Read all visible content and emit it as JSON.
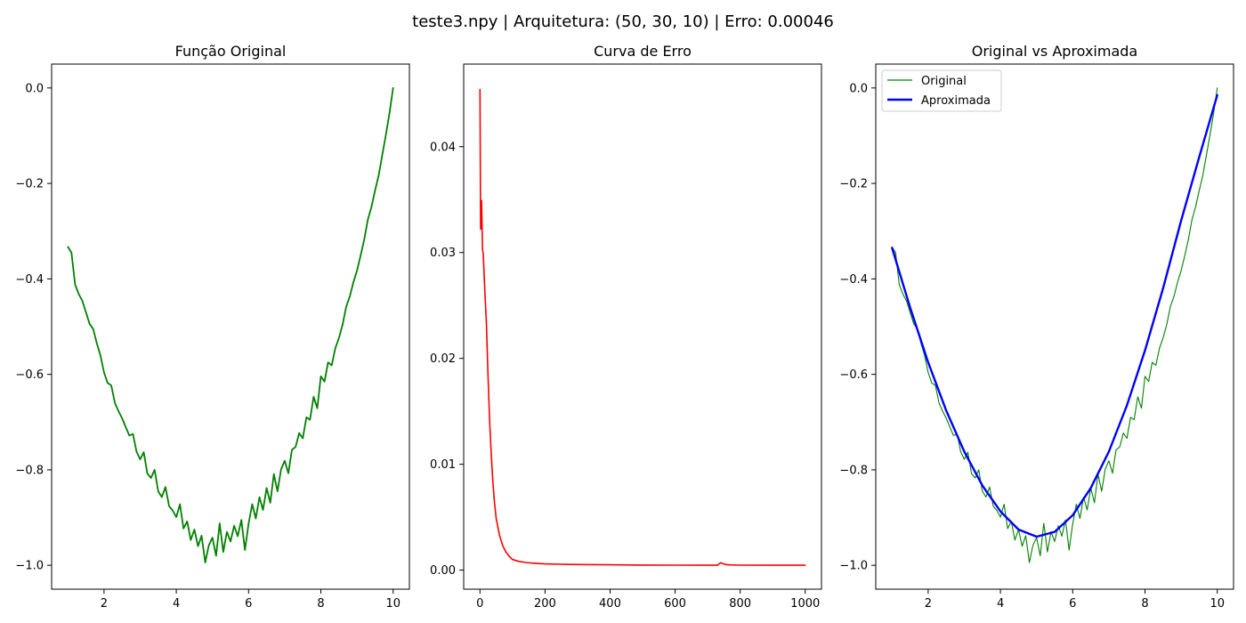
{
  "figure": {
    "suptitle": "teste3.npy | Arquitetura: (50, 30, 10) | Erro: 0.00046"
  },
  "colors": {
    "original": "#008000",
    "approx": "#0000ff",
    "error": "#ff0000"
  },
  "chart_data": [
    {
      "id": "original",
      "type": "line",
      "title": "Função Original",
      "xlim": [
        0.55,
        10.45
      ],
      "ylim": [
        -1.05,
        0.05
      ],
      "xticks": [
        2,
        4,
        6,
        8,
        10
      ],
      "xtick_labels": [
        "2",
        "4",
        "6",
        "8",
        "10"
      ],
      "yticks": [
        -1.0,
        -0.8,
        -0.6,
        -0.4,
        -0.2,
        0.0
      ],
      "ytick_labels": [
        "−1.0",
        "−0.8",
        "−0.6",
        "−0.4",
        "−0.2",
        "0.0"
      ],
      "series": [
        {
          "name": "Original",
          "x": [
            1.0,
            1.1,
            1.2,
            1.3,
            1.4,
            1.5,
            1.6,
            1.7,
            1.8,
            1.9,
            2.0,
            2.1,
            2.2,
            2.3,
            2.4,
            2.5,
            2.6,
            2.7,
            2.8,
            2.9,
            3.0,
            3.1,
            3.2,
            3.3,
            3.4,
            3.5,
            3.6,
            3.7,
            3.8,
            3.9,
            4.0,
            4.1,
            4.2,
            4.3,
            4.4,
            4.5,
            4.6,
            4.7,
            4.8,
            4.9,
            5.0,
            5.1,
            5.2,
            5.3,
            5.4,
            5.5,
            5.6,
            5.7,
            5.8,
            5.9,
            6.0,
            6.1,
            6.2,
            6.3,
            6.4,
            6.5,
            6.6,
            6.7,
            6.8,
            6.9,
            7.0,
            7.1,
            7.2,
            7.3,
            7.4,
            7.5,
            7.6,
            7.7,
            7.8,
            7.9,
            8.0,
            8.1,
            8.2,
            8.3,
            8.4,
            8.5,
            8.6,
            8.7,
            8.8,
            8.9,
            9.0,
            9.1,
            9.2,
            9.3,
            9.4,
            9.5,
            9.6,
            9.7,
            9.8,
            9.9,
            10.0
          ],
          "y": [
            -0.333,
            -0.345,
            -0.412,
            -0.432,
            -0.446,
            -0.47,
            -0.494,
            -0.505,
            -0.535,
            -0.56,
            -0.596,
            -0.618,
            -0.623,
            -0.66,
            -0.677,
            -0.692,
            -0.71,
            -0.728,
            -0.725,
            -0.762,
            -0.778,
            -0.763,
            -0.808,
            -0.817,
            -0.8,
            -0.845,
            -0.857,
            -0.836,
            -0.876,
            -0.885,
            -0.899,
            -0.872,
            -0.923,
            -0.908,
            -0.947,
            -0.925,
            -0.96,
            -0.938,
            -0.994,
            -0.958,
            -0.942,
            -0.98,
            -0.912,
            -0.972,
            -0.93,
            -0.95,
            -0.917,
            -0.939,
            -0.905,
            -0.968,
            -0.913,
            -0.872,
            -0.902,
            -0.857,
            -0.884,
            -0.838,
            -0.869,
            -0.809,
            -0.845,
            -0.799,
            -0.781,
            -0.807,
            -0.758,
            -0.752,
            -0.723,
            -0.734,
            -0.69,
            -0.695,
            -0.647,
            -0.671,
            -0.604,
            -0.615,
            -0.575,
            -0.581,
            -0.545,
            -0.524,
            -0.496,
            -0.459,
            -0.437,
            -0.407,
            -0.383,
            -0.351,
            -0.318,
            -0.276,
            -0.249,
            -0.215,
            -0.183,
            -0.141,
            -0.098,
            -0.052,
            0.0
          ]
        }
      ]
    },
    {
      "id": "error",
      "type": "line",
      "title": "Curva de Erro",
      "xlim": [
        -50,
        1050
      ],
      "ylim": [
        -0.0018,
        0.0478
      ],
      "xticks": [
        0,
        200,
        400,
        600,
        800,
        1000
      ],
      "xtick_labels": [
        "0",
        "200",
        "400",
        "600",
        "800",
        "1000"
      ],
      "yticks": [
        0.0,
        0.01,
        0.02,
        0.03,
        0.04
      ],
      "ytick_labels": [
        "0.00",
        "0.01",
        "0.02",
        "0.03",
        "0.04"
      ],
      "series": [
        {
          "name": "Erro",
          "x": [
            0,
            2,
            5,
            8,
            10,
            15,
            20,
            25,
            30,
            35,
            40,
            45,
            50,
            60,
            70,
            80,
            90,
            100,
            120,
            140,
            160,
            180,
            200,
            250,
            300,
            400,
            500,
            600,
            700,
            730,
            740,
            750,
            760,
            800,
            900,
            1000
          ],
          "y": [
            0.0454,
            0.0322,
            0.0349,
            0.0302,
            0.03,
            0.0263,
            0.0232,
            0.0182,
            0.014,
            0.0107,
            0.0082,
            0.0063,
            0.0049,
            0.0033,
            0.0023,
            0.0017,
            0.0013,
            0.001,
            0.00082,
            0.00072,
            0.00066,
            0.00062,
            0.00059,
            0.00055,
            0.00053,
            0.0005,
            0.00048,
            0.00047,
            0.00046,
            0.00046,
            0.0007,
            0.00058,
            0.0005,
            0.00047,
            0.00046,
            0.00046
          ]
        }
      ]
    },
    {
      "id": "comparison",
      "type": "line",
      "title": "Original vs Aproximada",
      "xlim": [
        0.55,
        10.45
      ],
      "ylim": [
        -1.05,
        0.05
      ],
      "xticks": [
        2,
        4,
        6,
        8,
        10
      ],
      "xtick_labels": [
        "2",
        "4",
        "6",
        "8",
        "10"
      ],
      "yticks": [
        -1.0,
        -0.8,
        -0.6,
        -0.4,
        -0.2,
        0.0
      ],
      "ytick_labels": [
        "−1.0",
        "−0.8",
        "−0.6",
        "−0.4",
        "−0.2",
        "0.0"
      ],
      "legend": {
        "location": "upper-left",
        "entries": [
          "Original",
          "Aproximada"
        ]
      },
      "series": [
        {
          "name": "Original",
          "x": [
            1.0,
            1.1,
            1.2,
            1.3,
            1.4,
            1.5,
            1.6,
            1.7,
            1.8,
            1.9,
            2.0,
            2.1,
            2.2,
            2.3,
            2.4,
            2.5,
            2.6,
            2.7,
            2.8,
            2.9,
            3.0,
            3.1,
            3.2,
            3.3,
            3.4,
            3.5,
            3.6,
            3.7,
            3.8,
            3.9,
            4.0,
            4.1,
            4.2,
            4.3,
            4.4,
            4.5,
            4.6,
            4.7,
            4.8,
            4.9,
            5.0,
            5.1,
            5.2,
            5.3,
            5.4,
            5.5,
            5.6,
            5.7,
            5.8,
            5.9,
            6.0,
            6.1,
            6.2,
            6.3,
            6.4,
            6.5,
            6.6,
            6.7,
            6.8,
            6.9,
            7.0,
            7.1,
            7.2,
            7.3,
            7.4,
            7.5,
            7.6,
            7.7,
            7.8,
            7.9,
            8.0,
            8.1,
            8.2,
            8.3,
            8.4,
            8.5,
            8.6,
            8.7,
            8.8,
            8.9,
            9.0,
            9.1,
            9.2,
            9.3,
            9.4,
            9.5,
            9.6,
            9.7,
            9.8,
            9.9,
            10.0
          ],
          "y": [
            -0.333,
            -0.345,
            -0.412,
            -0.432,
            -0.446,
            -0.47,
            -0.494,
            -0.505,
            -0.535,
            -0.56,
            -0.596,
            -0.618,
            -0.623,
            -0.66,
            -0.677,
            -0.692,
            -0.71,
            -0.728,
            -0.725,
            -0.762,
            -0.778,
            -0.763,
            -0.808,
            -0.817,
            -0.8,
            -0.845,
            -0.857,
            -0.836,
            -0.876,
            -0.885,
            -0.899,
            -0.872,
            -0.923,
            -0.908,
            -0.947,
            -0.925,
            -0.96,
            -0.938,
            -0.994,
            -0.958,
            -0.942,
            -0.98,
            -0.912,
            -0.972,
            -0.93,
            -0.95,
            -0.917,
            -0.939,
            -0.905,
            -0.968,
            -0.913,
            -0.872,
            -0.902,
            -0.857,
            -0.884,
            -0.838,
            -0.869,
            -0.809,
            -0.845,
            -0.799,
            -0.781,
            -0.807,
            -0.758,
            -0.752,
            -0.723,
            -0.734,
            -0.69,
            -0.695,
            -0.647,
            -0.671,
            -0.604,
            -0.615,
            -0.575,
            -0.581,
            -0.545,
            -0.524,
            -0.496,
            -0.459,
            -0.437,
            -0.407,
            -0.383,
            -0.351,
            -0.318,
            -0.276,
            -0.249,
            -0.215,
            -0.183,
            -0.141,
            -0.098,
            -0.052,
            0.0
          ]
        },
        {
          "name": "Aproximada",
          "x": [
            1.0,
            1.5,
            2.0,
            2.5,
            3.0,
            3.5,
            4.0,
            4.5,
            5.0,
            5.5,
            6.0,
            6.5,
            7.0,
            7.5,
            8.0,
            8.5,
            9.0,
            9.5,
            10.0
          ],
          "y": [
            -0.335,
            -0.46,
            -0.575,
            -0.676,
            -0.762,
            -0.833,
            -0.887,
            -0.925,
            -0.94,
            -0.93,
            -0.895,
            -0.838,
            -0.762,
            -0.665,
            -0.55,
            -0.42,
            -0.278,
            -0.145,
            -0.015
          ]
        }
      ]
    }
  ]
}
